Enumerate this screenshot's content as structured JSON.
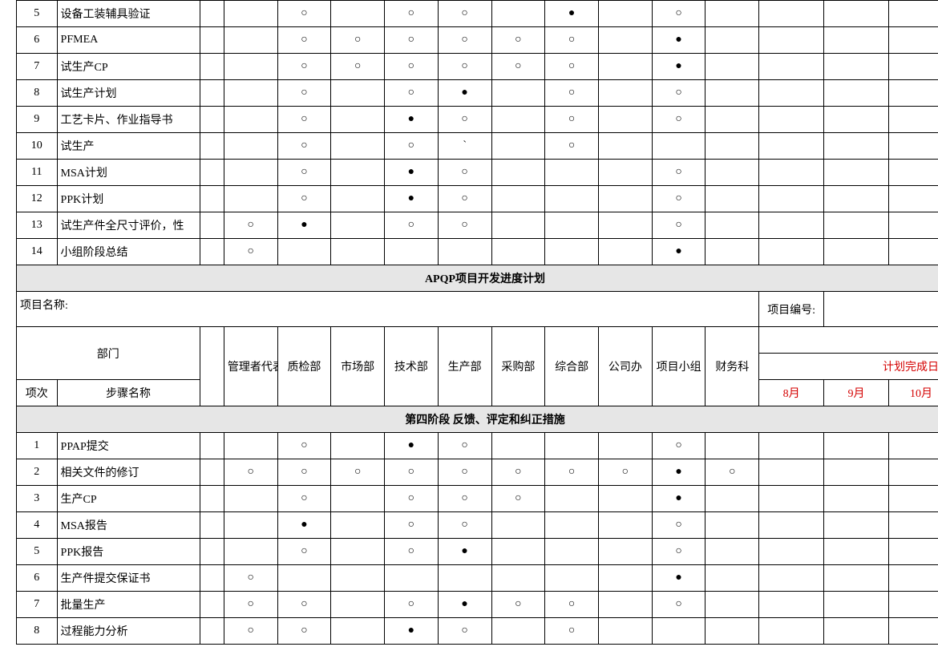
{
  "cols": {
    "narrow": 50,
    "wide": 176,
    "dept": 66,
    "month": 80
  },
  "upper_rows": [
    {
      "n": "5",
      "name": "设备工装辅具验证",
      "cells": [
        "",
        "",
        "○",
        "",
        "○",
        "○",
        "",
        "●",
        "",
        "○",
        ""
      ]
    },
    {
      "n": "6",
      "name": "PFMEA",
      "cells": [
        "",
        "",
        "○",
        "○",
        "○",
        "○",
        "○",
        "○",
        "",
        "●",
        ""
      ]
    },
    {
      "n": "7",
      "name": "试生产CP",
      "cells": [
        "",
        "",
        "○",
        "○",
        "○",
        "○",
        "○",
        "○",
        "",
        "●",
        ""
      ]
    },
    {
      "n": "8",
      "name": "试生产计划",
      "cells": [
        "",
        "",
        "○",
        "",
        "○",
        "●",
        "",
        "○",
        "",
        "○",
        ""
      ]
    },
    {
      "n": "9",
      "name": "工艺卡片、作业指导书",
      "cells": [
        "",
        "",
        "○",
        "",
        "●",
        "○",
        "",
        "○",
        "",
        "○",
        ""
      ]
    },
    {
      "n": "10",
      "name": "试生产",
      "cells": [
        "",
        "",
        "○",
        "",
        "○",
        "`",
        "",
        "○",
        "",
        "",
        ""
      ]
    },
    {
      "n": "11",
      "name": "MSA计划",
      "cells": [
        "",
        "",
        "○",
        "",
        "●",
        "○",
        "",
        "",
        "",
        "○",
        ""
      ]
    },
    {
      "n": "12",
      "name": "PPK计划",
      "cells": [
        "",
        "",
        "○",
        "",
        "●",
        "○",
        "",
        "",
        "",
        "○",
        ""
      ]
    },
    {
      "n": "13",
      "name": "试生产件全尺寸评价，性",
      "cells": [
        "",
        "○",
        "●",
        "",
        "○",
        "○",
        "",
        "",
        "",
        "○",
        ""
      ]
    },
    {
      "n": "14",
      "name": "小组阶段总结",
      "cells": [
        "",
        "○",
        "",
        "",
        "",
        "",
        "",
        "",
        "",
        "●",
        ""
      ]
    }
  ],
  "section_title": "APQP项目开发进度计划",
  "proj_name_label": "项目名称:",
  "proj_num_label": "项目编号:",
  "dept_label": "部门",
  "seq_label": "项次",
  "step_label": "步骤名称",
  "depts": [
    "管理者代表",
    "质检部",
    "市场部",
    "技术部",
    "生产部",
    "采购部",
    "综合部",
    "公司办",
    "项目小组",
    "财务科"
  ],
  "sched_suffix": "计",
  "completion_label": "计划完成日期",
  "months": [
    "8月",
    "9月",
    "10月"
  ],
  "stage4": "第四阶段    反馈、评定和纠正措施",
  "lower_rows": [
    {
      "n": "1",
      "name": "PPAP提交",
      "cells": [
        "",
        "",
        "○",
        "",
        "●",
        "○",
        "",
        "",
        "",
        "○",
        ""
      ]
    },
    {
      "n": "2",
      "name": "相关文件的修订",
      "cells": [
        "",
        "○",
        "○",
        "○",
        "○",
        "○",
        "○",
        "○",
        "○",
        "●",
        "○"
      ]
    },
    {
      "n": "3",
      "name": "生产CP",
      "cells": [
        "",
        "",
        "○",
        "",
        "○",
        "○",
        "○",
        "",
        "",
        "●",
        ""
      ]
    },
    {
      "n": "4",
      "name": "MSA报告",
      "cells": [
        "",
        "",
        "●",
        "",
        "○",
        "○",
        "",
        "",
        "",
        "○",
        ""
      ]
    },
    {
      "n": "5",
      "name": "PPK报告",
      "cells": [
        "",
        "",
        "○",
        "",
        "○",
        "●",
        "",
        "",
        "",
        "○",
        ""
      ]
    },
    {
      "n": "6",
      "name": "生产件提交保证书",
      "cells": [
        "",
        "○",
        "",
        "",
        "",
        "",
        "",
        "",
        "",
        "●",
        ""
      ]
    },
    {
      "n": "7",
      "name": "批量生产",
      "cells": [
        "",
        "○",
        "○",
        "",
        "○",
        "●",
        "○",
        "○",
        "",
        "○",
        ""
      ]
    },
    {
      "n": "8",
      "name": "过程能力分析",
      "cells": [
        "",
        "○",
        "○",
        "",
        "●",
        "○",
        "",
        "○",
        "",
        "",
        ""
      ]
    }
  ]
}
